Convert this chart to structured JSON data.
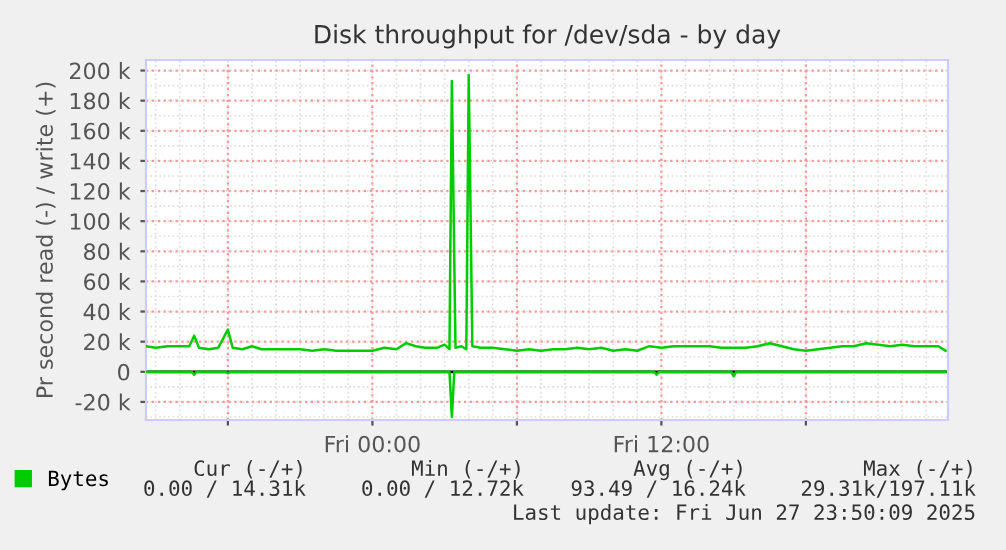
{
  "chart_data": {
    "type": "line",
    "title": "Disk throughput for /dev/sda - by day",
    "ylabel": "Pr second read (-) / write (+)",
    "xlim": [
      "2025-06-26T14:36",
      "2025-06-27T23:54"
    ],
    "xticks": [
      {
        "value": "2025-06-26T18:00",
        "label": null
      },
      {
        "value": "2025-06-27T00:00",
        "label": "Fri 00:00"
      },
      {
        "value": "2025-06-27T06:00",
        "label": null
      },
      {
        "value": "2025-06-27T12:00",
        "label": "Fri 12:00"
      },
      {
        "value": "2025-06-27T18:00",
        "label": null
      }
    ],
    "ylim": [
      -32,
      207
    ],
    "yticks": [
      {
        "value": -20,
        "label": "-20 k"
      },
      0,
      {
        "value": 20,
        "label": "20 k"
      },
      {
        "value": 40,
        "label": "40 k"
      },
      {
        "value": 60,
        "label": "60 k"
      },
      {
        "value": 80,
        "label": "80 k"
      },
      {
        "value": 100,
        "label": "100 k"
      },
      {
        "value": 120,
        "label": "120 k"
      },
      {
        "value": 140,
        "label": "140 k"
      },
      {
        "value": 160,
        "label": "160 k"
      },
      {
        "value": 180,
        "label": "180 k"
      },
      {
        "value": 200,
        "label": "200 k"
      }
    ],
    "grid": true,
    "legend": "bottom left",
    "marker": "none",
    "line_style": "solid",
    "ref_lines": [
      {
        "axis": "y",
        "value": 0,
        "label": null,
        "color": "#000000"
      }
    ],
    "series": [
      {
        "name": "Bytes",
        "color": "#00cc00",
        "x": [
          "2025-06-26T14:36",
          "2025-06-26T15:00",
          "2025-06-26T15:30",
          "2025-06-26T16:00",
          "2025-06-26T16:24",
          "2025-06-26T16:36",
          "2025-06-26T16:48",
          "2025-06-26T17:12",
          "2025-06-26T17:36",
          "2025-06-26T18:00",
          "2025-06-26T18:12",
          "2025-06-26T18:36",
          "2025-06-26T19:00",
          "2025-06-26T19:24",
          "2025-06-26T20:00",
          "2025-06-26T20:30",
          "2025-06-26T21:00",
          "2025-06-26T21:30",
          "2025-06-26T22:00",
          "2025-06-26T22:30",
          "2025-06-26T23:00",
          "2025-06-26T23:30",
          "2025-06-27T00:00",
          "2025-06-27T00:30",
          "2025-06-27T01:00",
          "2025-06-27T01:24",
          "2025-06-27T01:48",
          "2025-06-27T02:12",
          "2025-06-27T02:42",
          "2025-06-27T03:00",
          "2025-06-27T03:12",
          "2025-06-27T03:18",
          "2025-06-27T03:27",
          "2025-06-27T03:42",
          "2025-06-27T03:54",
          "2025-06-27T04:00",
          "2025-06-27T04:09",
          "2025-06-27T04:30",
          "2025-06-27T05:00",
          "2025-06-27T05:30",
          "2025-06-27T06:00",
          "2025-06-27T06:30",
          "2025-06-27T07:00",
          "2025-06-27T07:30",
          "2025-06-27T08:00",
          "2025-06-27T08:30",
          "2025-06-27T09:00",
          "2025-06-27T09:30",
          "2025-06-27T10:00",
          "2025-06-27T10:30",
          "2025-06-27T11:00",
          "2025-06-27T11:30",
          "2025-06-27T12:00",
          "2025-06-27T12:30",
          "2025-06-27T13:00",
          "2025-06-27T13:30",
          "2025-06-27T14:00",
          "2025-06-27T14:30",
          "2025-06-27T15:00",
          "2025-06-27T15:30",
          "2025-06-27T16:00",
          "2025-06-27T16:30",
          "2025-06-27T17:00",
          "2025-06-27T17:30",
          "2025-06-27T18:00",
          "2025-06-27T18:30",
          "2025-06-27T19:00",
          "2025-06-27T19:30",
          "2025-06-27T20:00",
          "2025-06-27T20:30",
          "2025-06-27T21:00",
          "2025-06-27T21:30",
          "2025-06-27T22:00",
          "2025-06-27T22:30",
          "2025-06-27T23:00",
          "2025-06-27T23:30",
          "2025-06-27T23:48"
        ],
        "values": [
          17,
          16,
          17,
          17,
          17,
          24,
          16,
          15,
          16,
          28,
          16,
          15,
          17,
          15,
          15,
          15,
          15,
          14,
          15,
          14,
          14,
          14,
          14,
          16,
          15,
          19,
          17,
          16,
          16,
          18,
          15,
          193,
          16,
          17,
          15,
          197,
          17,
          16,
          16,
          15,
          14,
          15,
          14,
          15,
          15,
          16,
          15,
          16,
          14,
          15,
          14,
          17,
          16,
          17,
          17,
          17,
          17,
          16,
          16,
          16,
          17,
          19,
          17,
          15,
          14,
          15,
          16,
          17,
          17,
          19,
          18,
          17,
          18,
          17,
          17,
          17,
          14
        ]
      },
      {
        "color": "#00cc00",
        "x": [
          "2025-06-26T14:36",
          "2025-06-26T16:30",
          "2025-06-26T16:36",
          "2025-06-26T16:42",
          "2025-06-26T17:54",
          "2025-06-26T18:00",
          "2025-06-26T18:06",
          "2025-06-27T03:12",
          "2025-06-27T03:18",
          "2025-06-27T03:24",
          "2025-06-27T11:42",
          "2025-06-27T11:48",
          "2025-06-27T11:54",
          "2025-06-27T14:54",
          "2025-06-27T15:00",
          "2025-06-27T15:06",
          "2025-06-27T23:48"
        ],
        "values": [
          0,
          0,
          -2,
          0,
          0,
          -1,
          0,
          0,
          -30,
          0,
          0,
          -2,
          0,
          0,
          -3,
          0,
          0
        ]
      }
    ],
    "annotations": [
      "Cur (-/+)",
      "Min (-/+)",
      "Avg (-/+)",
      "Max (-/+)",
      "0.00 / 14.31k",
      "0.00 / 12.72k",
      "93.49 / 16.24k",
      "29.31k/197.11k",
      "Last update: Fri Jun 27 23:50:09 2025"
    ]
  }
}
